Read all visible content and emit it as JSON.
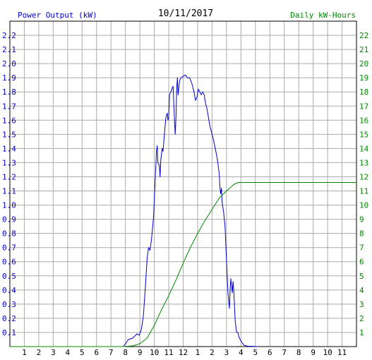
{
  "chart_data": {
    "type": "line",
    "title": "10/11/2017",
    "ylabel_left": "Power Output (kW)",
    "ylabel_right": "Daily kW-Hours",
    "xlabel": "",
    "x_ticks": [
      "1",
      "2",
      "3",
      "4",
      "5",
      "6",
      "7",
      "8",
      "9",
      "10",
      "11",
      "12",
      "1",
      "2",
      "3",
      "4",
      "5",
      "6",
      "7",
      "8",
      "9",
      "10",
      "11"
    ],
    "y_left_ticks": [
      "0.1",
      "0.2",
      "0.3",
      "0.4",
      "0.5",
      "0.6",
      "0.7",
      "0.8",
      "0.9",
      "1.0",
      "1.1",
      "1.2",
      "1.3",
      "1.4",
      "1.5",
      "1.6",
      "1.7",
      "1.8",
      "1.9",
      "2.0",
      "2.1",
      "2.2"
    ],
    "y_right_ticks": [
      "1",
      "2",
      "3",
      "4",
      "5",
      "6",
      "7",
      "8",
      "9",
      "10",
      "11",
      "12",
      "13",
      "14",
      "15",
      "16",
      "17",
      "18",
      "19",
      "20",
      "21",
      "22"
    ],
    "xlim": [
      0,
      24
    ],
    "ylim_left": [
      0,
      2.3
    ],
    "ylim_right": [
      0,
      23
    ],
    "grid": true,
    "colors": {
      "power": "#0000cc",
      "energy": "#008800",
      "grid": "#aaaaaa",
      "axis_left": "#0000cc",
      "axis_right": "#008800"
    },
    "series": [
      {
        "axis": "left",
        "color": "#0000cc",
        "points": [
          [
            0,
            0
          ],
          [
            7.85,
            0
          ],
          [
            8.0,
            0.02
          ],
          [
            8.2,
            0.05
          ],
          [
            8.5,
            0.06
          ],
          [
            8.8,
            0.09
          ],
          [
            8.95,
            0.08
          ],
          [
            9.1,
            0.12
          ],
          [
            9.25,
            0.22
          ],
          [
            9.4,
            0.45
          ],
          [
            9.5,
            0.62
          ],
          [
            9.6,
            0.7
          ],
          [
            9.7,
            0.68
          ],
          [
            9.8,
            0.75
          ],
          [
            9.95,
            0.92
          ],
          [
            10.05,
            1.15
          ],
          [
            10.15,
            1.38
          ],
          [
            10.2,
            1.42
          ],
          [
            10.25,
            1.3
          ],
          [
            10.35,
            1.28
          ],
          [
            10.4,
            1.2
          ],
          [
            10.45,
            1.32
          ],
          [
            10.55,
            1.4
          ],
          [
            10.6,
            1.38
          ],
          [
            10.7,
            1.5
          ],
          [
            10.8,
            1.62
          ],
          [
            10.9,
            1.65
          ],
          [
            10.95,
            1.6
          ],
          [
            11.0,
            1.62
          ],
          [
            11.05,
            1.78
          ],
          [
            11.15,
            1.8
          ],
          [
            11.25,
            1.83
          ],
          [
            11.3,
            1.84
          ],
          [
            11.35,
            1.72
          ],
          [
            11.4,
            1.6
          ],
          [
            11.45,
            1.5
          ],
          [
            11.5,
            1.62
          ],
          [
            11.55,
            1.82
          ],
          [
            11.6,
            1.9
          ],
          [
            11.65,
            1.78
          ],
          [
            11.75,
            1.88
          ],
          [
            11.85,
            1.9
          ],
          [
            12.0,
            1.91
          ],
          [
            12.15,
            1.92
          ],
          [
            12.3,
            1.9
          ],
          [
            12.45,
            1.9
          ],
          [
            12.6,
            1.86
          ],
          [
            12.75,
            1.8
          ],
          [
            12.85,
            1.74
          ],
          [
            12.95,
            1.76
          ],
          [
            13.05,
            1.82
          ],
          [
            13.15,
            1.8
          ],
          [
            13.25,
            1.78
          ],
          [
            13.35,
            1.8
          ],
          [
            13.45,
            1.78
          ],
          [
            13.55,
            1.72
          ],
          [
            13.65,
            1.68
          ],
          [
            13.75,
            1.62
          ],
          [
            13.85,
            1.56
          ],
          [
            14.0,
            1.5
          ],
          [
            14.1,
            1.46
          ],
          [
            14.2,
            1.41
          ],
          [
            14.3,
            1.36
          ],
          [
            14.4,
            1.3
          ],
          [
            14.5,
            1.22
          ],
          [
            14.55,
            1.12
          ],
          [
            14.6,
            1.08
          ],
          [
            14.65,
            1.12
          ],
          [
            14.7,
            1.02
          ],
          [
            14.8,
            0.95
          ],
          [
            14.9,
            0.85
          ],
          [
            14.95,
            0.72
          ],
          [
            15.05,
            0.5
          ],
          [
            15.1,
            0.38
          ],
          [
            15.15,
            0.33
          ],
          [
            15.2,
            0.27
          ],
          [
            15.25,
            0.4
          ],
          [
            15.3,
            0.48
          ],
          [
            15.35,
            0.43
          ],
          [
            15.4,
            0.38
          ],
          [
            15.45,
            0.46
          ],
          [
            15.5,
            0.4
          ],
          [
            15.55,
            0.3
          ],
          [
            15.6,
            0.18
          ],
          [
            15.7,
            0.1
          ],
          [
            15.8,
            0.1
          ],
          [
            15.85,
            0.07
          ],
          [
            16.0,
            0.04
          ],
          [
            16.2,
            0.01
          ],
          [
            16.45,
            0.003
          ],
          [
            17.2,
            0
          ]
        ]
      },
      {
        "axis": "right",
        "color": "#008800",
        "points": [
          [
            0,
            0
          ],
          [
            7.9,
            0
          ],
          [
            8.5,
            0.05
          ],
          [
            9.0,
            0.2
          ],
          [
            9.5,
            0.6
          ],
          [
            10.0,
            1.5
          ],
          [
            10.5,
            2.6
          ],
          [
            11.0,
            3.6
          ],
          [
            11.5,
            4.7
          ],
          [
            12.0,
            5.9
          ],
          [
            12.5,
            7.0
          ],
          [
            13.0,
            8.0
          ],
          [
            13.5,
            8.9
          ],
          [
            14.0,
            9.7
          ],
          [
            14.5,
            10.5
          ],
          [
            15.0,
            11.0
          ],
          [
            15.5,
            11.45
          ],
          [
            15.8,
            11.6
          ],
          [
            16.0,
            11.6
          ],
          [
            24,
            11.6
          ]
        ]
      }
    ]
  }
}
